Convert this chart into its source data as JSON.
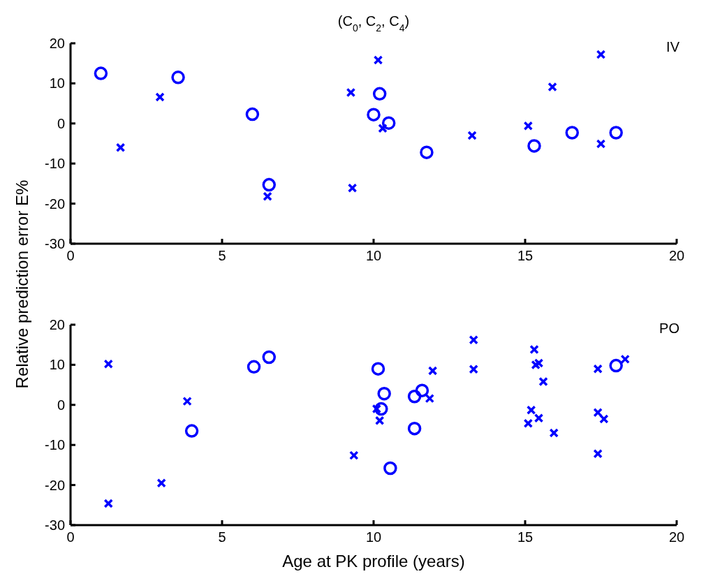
{
  "chart_data": [
    {
      "type": "scatter",
      "title": "(C$_{0}$, C$_{2}$, C$_{4}$)",
      "ylabel": "Relative prediction error E%",
      "annotations": [
        "IV"
      ],
      "xlim": [
        0,
        20
      ],
      "xticks": [
        0,
        5,
        10,
        15,
        20
      ],
      "ylim": [
        -30,
        20
      ],
      "yticks": [
        -30,
        -20,
        -10,
        0,
        10,
        20
      ],
      "series": [
        {
          "color": "#0000ff",
          "marker": "circle",
          "x": [
            1.0,
            3.55,
            6.0,
            6.55,
            10.0,
            10.2,
            10.5,
            11.75,
            15.3,
            16.55,
            18.0
          ],
          "values": [
            12.5,
            11.5,
            2.3,
            -15.3,
            2.2,
            7.4,
            0.1,
            -7.2,
            -5.6,
            -2.3,
            -2.3
          ]
        },
        {
          "color": "#0000ff",
          "marker": "cross",
          "x": [
            1.65,
            2.95,
            6.5,
            9.25,
            9.3,
            10.15,
            10.3,
            13.25,
            15.1,
            15.9,
            17.5,
            17.5
          ],
          "values": [
            -6,
            6.6,
            -18.2,
            7.7,
            -16.1,
            15.8,
            -1.2,
            -3.0,
            -0.6,
            9.1,
            17.2,
            -5.1
          ]
        }
      ]
    },
    {
      "type": "scatter",
      "xlabel": "Age at PK profile (years)",
      "annotations": [
        "PO"
      ],
      "xlim": [
        0,
        20
      ],
      "xticks": [
        0,
        5,
        10,
        15,
        20
      ],
      "ylim": [
        -30,
        20
      ],
      "yticks": [
        -30,
        -20,
        -10,
        0,
        10,
        20
      ],
      "series": [
        {
          "color": "#0000ff",
          "marker": "circle",
          "x": [
            4.0,
            6.05,
            6.55,
            10.15,
            10.25,
            10.35,
            10.55,
            11.35,
            11.35,
            11.6,
            18.0
          ],
          "values": [
            -6.5,
            9.5,
            11.9,
            9.0,
            -1.0,
            2.8,
            -15.8,
            2.1,
            -5.9,
            3.6,
            9.8
          ]
        },
        {
          "color": "#0000ff",
          "marker": "cross",
          "x": [
            1.25,
            1.25,
            3.0,
            3.85,
            9.35,
            10.1,
            10.2,
            11.85,
            11.95,
            13.3,
            13.3,
            15.3,
            15.35,
            15.45,
            15.6,
            15.2,
            15.1,
            15.45,
            15.95,
            17.4,
            17.4,
            17.6,
            17.4,
            18.3
          ],
          "values": [
            10.2,
            -24.6,
            -19.5,
            0.9,
            -12.6,
            -1.0,
            -3.9,
            1.6,
            8.5,
            16.2,
            8.9,
            13.8,
            10.0,
            10.4,
            5.8,
            -1.3,
            -4.6,
            -3.3,
            -7.0,
            9.0,
            -1.9,
            -3.5,
            -12.2,
            11.4
          ]
        }
      ]
    }
  ]
}
